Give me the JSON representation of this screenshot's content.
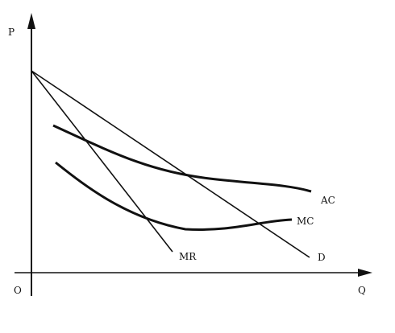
{
  "axes": {
    "y_label": "P",
    "x_label": "Q",
    "origin_label": "O"
  },
  "curves": {
    "mr": {
      "label": "MR"
    },
    "d": {
      "label": "D"
    },
    "ac": {
      "label": "AC"
    },
    "mc": {
      "label": "MC"
    }
  },
  "colors": {
    "ink": "#111111",
    "background": "#ffffff"
  }
}
